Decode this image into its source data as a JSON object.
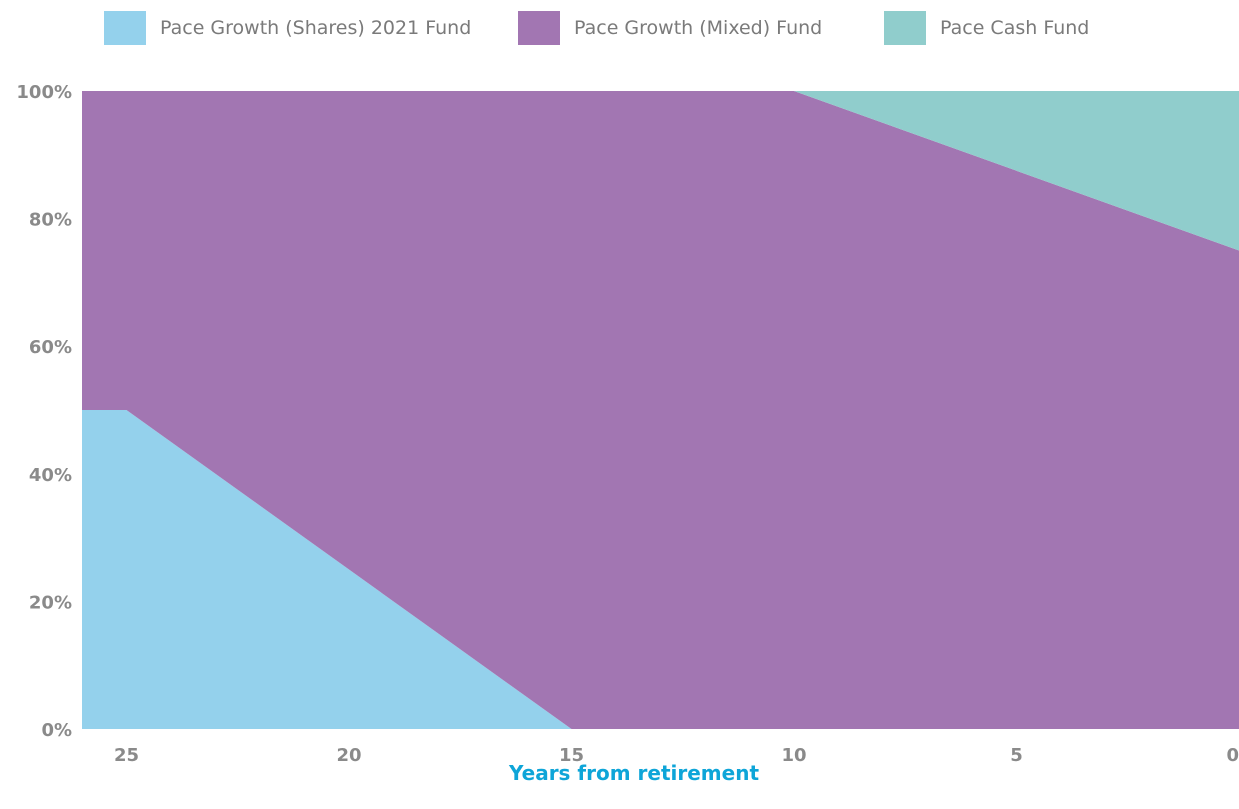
{
  "chart_data": {
    "type": "area",
    "stacked": true,
    "percent": true,
    "title": "",
    "xlabel": "Years from retirement",
    "ylabel": "",
    "x_reversed": true,
    "xlim": [
      26,
      0
    ],
    "ylim": [
      0,
      100
    ],
    "x_ticks": [
      25,
      20,
      15,
      10,
      5,
      0
    ],
    "x_tick_labels": [
      "25",
      "20",
      "15",
      "10",
      "5",
      "0"
    ],
    "y_ticks": [
      0,
      20,
      40,
      60,
      80,
      100
    ],
    "y_tick_labels": [
      "0%",
      "20%",
      "40%",
      "60%",
      "80%",
      "100%"
    ],
    "legend_position": "top",
    "grid": false,
    "x": [
      26,
      25,
      15,
      10,
      0
    ],
    "series": [
      {
        "name": "Pace Growth (Shares) 2021 Fund",
        "color": "#94d1ec",
        "values": [
          50,
          50,
          0,
          0,
          0
        ]
      },
      {
        "name": "Pace Growth (Mixed) Fund",
        "color": "#a276b2",
        "values": [
          50,
          50,
          100,
          100,
          75
        ]
      },
      {
        "name": "Pace Cash Fund",
        "color": "#90cdcc",
        "values": [
          0,
          0,
          0,
          0,
          25
        ]
      }
    ]
  }
}
